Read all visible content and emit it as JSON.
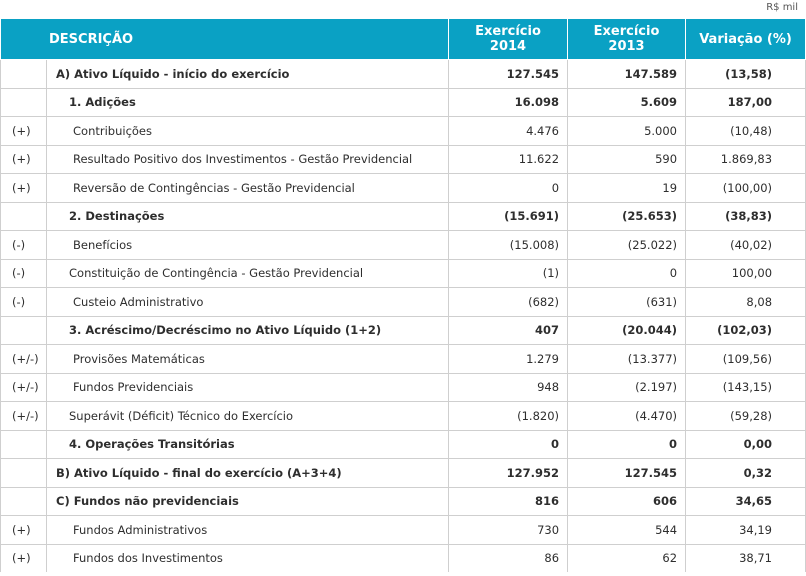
{
  "unit": "R$ mil",
  "header": {
    "descricao": "DESCRIÇÃO",
    "y2014_line1": "Exercício",
    "y2014_line2": "2014",
    "y2013_line1": "Exercício",
    "y2013_line2": "2013",
    "variacao": "Variação (%)"
  },
  "rows": [
    {
      "sign": "",
      "label": "A) Ativo Líquido - início do exercício",
      "v2014": "127.545",
      "v2013": "147.589",
      "var": "(13,58)"
    },
    {
      "sign": "",
      "label": "1. Adições",
      "v2014": "16.098",
      "v2013": "5.609",
      "var": "187,00"
    },
    {
      "sign": "(+)",
      "label": "Contribuições",
      "v2014": "4.476",
      "v2013": "5.000",
      "var": "(10,48)"
    },
    {
      "sign": "(+)",
      "label": "Resultado Positivo dos Investimentos - Gestão Previdencial",
      "v2014": "11.622",
      "v2013": "590",
      "var": "1.869,83"
    },
    {
      "sign": "(+)",
      "label": "Reversão de Contingências - Gestão Previdencial",
      "v2014": "0",
      "v2013": "19",
      "var": "(100,00)"
    },
    {
      "sign": "",
      "label": "2. Destinações",
      "v2014": "(15.691)",
      "v2013": "(25.653)",
      "var": "(38,83)"
    },
    {
      "sign": "(-)",
      "label": "Benefícios",
      "v2014": "(15.008)",
      "v2013": "(25.022)",
      "var": "(40,02)"
    },
    {
      "sign": "(-)",
      "label": "Constituição de Contingência - Gestão Previdencial",
      "v2014": "(1)",
      "v2013": "0",
      "var": "100,00"
    },
    {
      "sign": "(-)",
      "label": "Custeio Administrativo",
      "v2014": "(682)",
      "v2013": "(631)",
      "var": "8,08"
    },
    {
      "sign": "",
      "label": "3. Acréscimo/Decréscimo no Ativo Líquido (1+2)",
      "v2014": "407",
      "v2013": "(20.044)",
      "var": "(102,03)"
    },
    {
      "sign": "(+/-)",
      "label": "Provisões Matemáticas",
      "v2014": "1.279",
      "v2013": "(13.377)",
      "var": "(109,56)"
    },
    {
      "sign": "(+/-)",
      "label": "Fundos Previdenciais",
      "v2014": "948",
      "v2013": "(2.197)",
      "var": "(143,15)"
    },
    {
      "sign": "(+/-)",
      "label": "Superávit (Déficit) Técnico do Exercício",
      "v2014": "(1.820)",
      "v2013": "(4.470)",
      "var": "(59,28)"
    },
    {
      "sign": "",
      "label": "4. Operações Transitórias",
      "v2014": "0",
      "v2013": "0",
      "var": "0,00"
    },
    {
      "sign": "",
      "label": "B) Ativo Líquido - final do exercício (A+3+4)",
      "v2014": "127.952",
      "v2013": "127.545",
      "var": "0,32"
    },
    {
      "sign": "",
      "label": "C) Fundos não previdenciais",
      "v2014": "816",
      "v2013": "606",
      "var": "34,65"
    },
    {
      "sign": "(+)",
      "label": "Fundos Administrativos",
      "v2014": "730",
      "v2013": "544",
      "var": "34,19"
    },
    {
      "sign": "(+)",
      "label": "Fundos dos Investimentos",
      "v2014": "86",
      "v2013": "62",
      "var": "38,71"
    }
  ],
  "colors": {
    "header_bg": "#0aa1c4",
    "header_text": "#ffffff",
    "grid": "#cfcfcf"
  }
}
